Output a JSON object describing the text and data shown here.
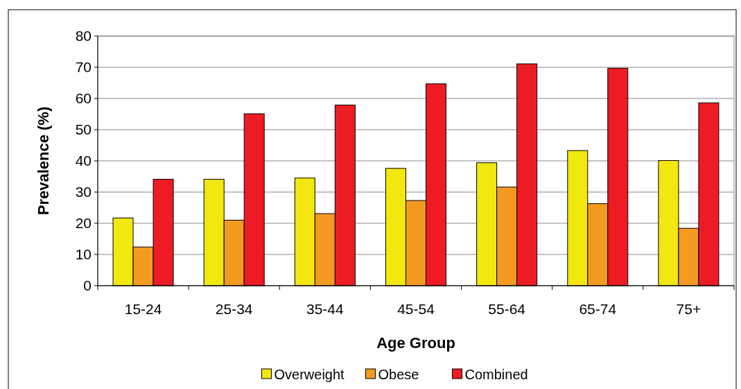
{
  "chart_data": {
    "type": "bar",
    "xlabel": "Age Group",
    "ylabel": "Prevalence (%)",
    "categories": [
      "15-24",
      "25-34",
      "35-44",
      "45-54",
      "55-64",
      "65-74",
      "75+"
    ],
    "series": [
      {
        "name": "Overweight",
        "color": "#f2e70f",
        "values": [
          21.7,
          34.1,
          34.5,
          37.6,
          39.4,
          43.3,
          40.1
        ]
      },
      {
        "name": "Obese",
        "color": "#f39a21",
        "values": [
          12.4,
          21.0,
          23.1,
          27.3,
          31.6,
          26.3,
          18.4
        ]
      },
      {
        "name": "Combined",
        "color": "#ed1c24",
        "values": [
          34.1,
          55.1,
          57.9,
          64.7,
          71.1,
          69.7,
          58.6
        ]
      }
    ],
    "ylim": [
      0,
      80
    ],
    "yticks": [
      0,
      10,
      20,
      30,
      40,
      50,
      60,
      70,
      80
    ],
    "grid": "y",
    "legend": "bottom"
  }
}
